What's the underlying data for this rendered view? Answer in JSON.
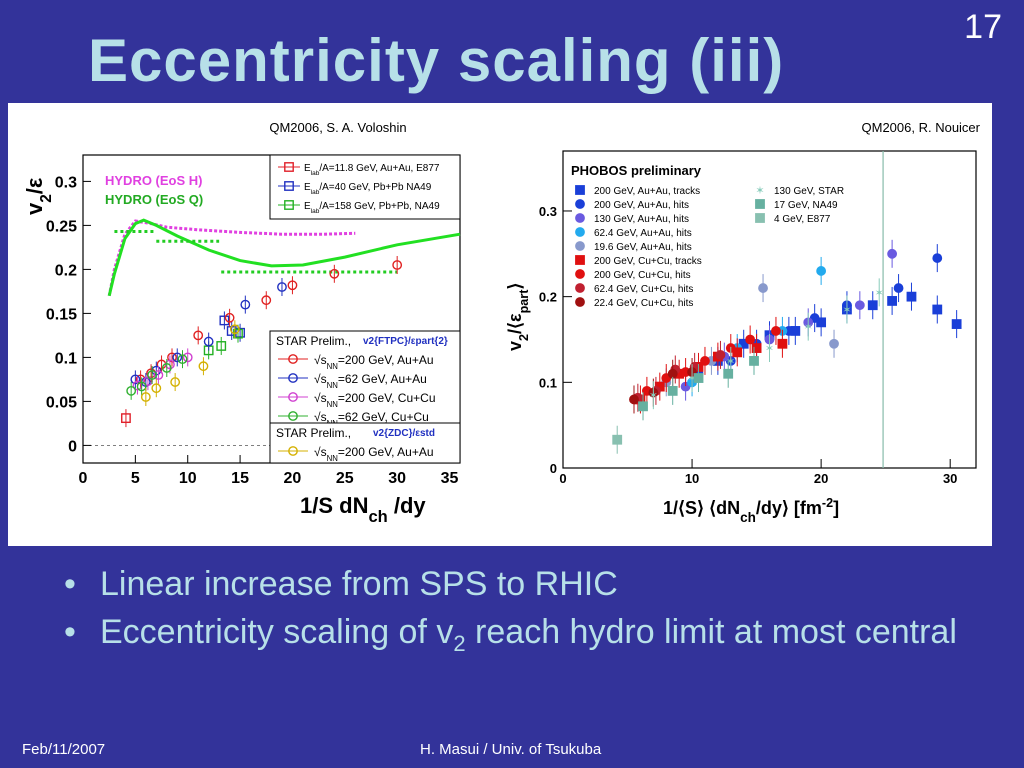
{
  "slide": {
    "number": "17",
    "title": "Eccentricity scaling (iii)",
    "bullets": [
      {
        "pre": "Linear increase from SPS to RHIC",
        "sub": "",
        "post": ""
      },
      {
        "pre": "Eccentricity scaling of v",
        "sub": "2",
        "post": " reach hydro limit at most central"
      }
    ],
    "footer": {
      "date": "Feb/11/2007",
      "author": "H. Masui / Univ. of Tsukuba"
    }
  },
  "colors": {
    "background": "#33339a",
    "title": "#b7e0e8",
    "hydro_h": "#e040e0",
    "hydro_q": "#22e022"
  },
  "chart_data": [
    {
      "type": "scatter",
      "source_label": "QM2006, S. A. Voloshin",
      "xlabel": "1/S dN",
      "xlabel_sub": "ch",
      "xlabel_post": " /dy",
      "ylabel": "v",
      "ylabel_sub": "2",
      "ylabel_post": "/ε",
      "xlim": [
        0,
        36
      ],
      "ylim": [
        -0.02,
        0.33
      ],
      "xticks": [
        "0",
        "5",
        "10",
        "15",
        "20",
        "25",
        "30",
        "35"
      ],
      "yticks": [
        "0",
        "0.05",
        "0.1",
        "0.15",
        "0.2",
        "0.25",
        "0.3"
      ],
      "hydro_labels": [
        "HYDRO (EoS H)",
        "HYDRO (EoS Q)"
      ],
      "legend_top": [
        "/A=11.8 GeV, Au+Au, E877",
        "/A=40 GeV, Pb+Pb NA49",
        "/A=158 GeV, Pb+Pb, NA49"
      ],
      "legend_top_prefix": "E",
      "legend_top_prefix_sub": "lab",
      "legend_bottom_title": "STAR Prelim.,",
      "legend_bottom_method": "v2{FTPC}/εpart{2}",
      "legend_bottom": [
        "=200 GeV, Au+Au",
        "=62 GeV, Au+Au",
        "=200 GeV, Cu+Cu",
        "=62 GeV, Cu+Cu"
      ],
      "legend_zdc_title": "STAR Prelim.,",
      "legend_zdc_method": "v2{ZDC}/εstd",
      "legend_zdc": [
        "=200 GeV, Au+Au"
      ],
      "sqrt_label": "s",
      "sqrt_sub": "NN",
      "series": [
        {
          "name": "/A=11.8 GeV, Au+Au, E877",
          "color": "#e0202a",
          "marker": "square",
          "x": [
            4.1
          ],
          "y": [
            0.031
          ]
        },
        {
          "name": "/A=40 GeV, Pb+Pb NA49",
          "color": "#2030c0",
          "marker": "square",
          "x": [
            13.5,
            14.2,
            15.0
          ],
          "y": [
            0.142,
            0.13,
            0.128
          ]
        },
        {
          "name": "/A=158 GeV, Pb+Pb, NA49",
          "color": "#22b022",
          "marker": "square",
          "x": [
            12.0,
            13.2,
            14.8
          ],
          "y": [
            0.108,
            0.113,
            0.127
          ]
        },
        {
          "name": "=200 GeV, Au+Au",
          "color": "#e02020",
          "marker": "circle",
          "x": [
            5.5,
            6.5,
            7.5,
            8.5,
            11.0,
            14.0,
            17.5,
            20.0,
            24.0,
            30.0
          ],
          "y": [
            0.075,
            0.082,
            0.092,
            0.1,
            0.125,
            0.145,
            0.165,
            0.182,
            0.195,
            0.205
          ]
        },
        {
          "name": "=62 GeV, Au+Au",
          "color": "#2030c0",
          "marker": "circle",
          "x": [
            5.0,
            6.0,
            7.0,
            9.0,
            12.0,
            15.5,
            19.0
          ],
          "y": [
            0.075,
            0.072,
            0.085,
            0.1,
            0.118,
            0.16,
            0.18
          ]
        },
        {
          "name": "=200 GeV, Cu+Cu",
          "color": "#d040d0",
          "marker": "circle",
          "x": [
            5.2,
            6.2,
            7.2,
            8.3,
            10.0
          ],
          "y": [
            0.068,
            0.073,
            0.08,
            0.092,
            0.1
          ]
        },
        {
          "name": "=62 GeV, Cu+Cu",
          "color": "#30b030",
          "marker": "circle",
          "x": [
            4.6,
            5.6,
            6.6,
            8.0,
            9.5
          ],
          "y": [
            0.062,
            0.067,
            0.08,
            0.088,
            0.098
          ]
        },
        {
          "name": "=200 GeV, Au+Au ZDC",
          "color": "#d4b000",
          "marker": "circle",
          "x": [
            6.0,
            7.0,
            8.8,
            11.5,
            14.5
          ],
          "y": [
            0.055,
            0.065,
            0.072,
            0.09,
            0.132
          ]
        }
      ]
    },
    {
      "type": "scatter",
      "source_label": "QM2006, R. Nouicer",
      "title": "PHOBOS preliminary",
      "xlabel": "1/⟨S⟩ ⟨dN",
      "xlabel_sub": "ch",
      "xlabel_post": "/dy⟩ [fm",
      "xlabel_sup": "-2",
      "xlabel_end": "]",
      "ylabel": "v",
      "ylabel_sub": "2",
      "ylabel_mid": "/⟨ε",
      "ylabel_sub2": "part",
      "ylabel_post": "⟩",
      "xlim": [
        0,
        32
      ],
      "ylim": [
        0,
        0.37
      ],
      "xticks": [
        "0",
        "10",
        "20",
        "30"
      ],
      "yticks": [
        "0",
        "0.1",
        "0.2",
        "0.3"
      ],
      "series": [
        {
          "name": "200 GeV, Au+Au, tracks",
          "color": "#1a3fd8",
          "marker": "square",
          "x": [
            12.0,
            14.0,
            16.0,
            18.0,
            20.0,
            22.0,
            24.0,
            25.5,
            27.0,
            29.0,
            30.5
          ],
          "y": [
            0.125,
            0.145,
            0.155,
            0.16,
            0.17,
            0.185,
            0.19,
            0.195,
            0.2,
            0.185,
            0.168
          ]
        },
        {
          "name": "200 GeV, Au+Au, hits",
          "color": "#1a3fd8",
          "marker": "circle",
          "x": [
            10.5,
            13.0,
            15.0,
            17.5,
            19.5,
            22.0,
            26.0,
            29.0
          ],
          "y": [
            0.11,
            0.125,
            0.145,
            0.16,
            0.175,
            0.19,
            0.21,
            0.245
          ]
        },
        {
          "name": "130 GeV, Au+Au, hits",
          "color": "#6a5ae0",
          "marker": "circle",
          "x": [
            9.5,
            12.5,
            16.0,
            19.0,
            23.0,
            25.5
          ],
          "y": [
            0.095,
            0.13,
            0.15,
            0.17,
            0.19,
            0.25
          ]
        },
        {
          "name": "62.4 GeV, Au+Au, hits",
          "color": "#22aaee",
          "marker": "circle",
          "x": [
            10.0,
            13.5,
            17.0,
            20.0
          ],
          "y": [
            0.1,
            0.14,
            0.16,
            0.23
          ]
        },
        {
          "name": "19.6 GeV, Au+Au, hits",
          "color": "#8899cc",
          "marker": "circle",
          "x": [
            8.0,
            11.5,
            15.5,
            21.0
          ],
          "y": [
            0.1,
            0.125,
            0.21,
            0.145
          ]
        },
        {
          "name": "200 GeV, Cu+Cu, tracks",
          "color": "#e01010",
          "marker": "square",
          "x": [
            6.0,
            7.5,
            9.0,
            10.5,
            12.0,
            13.5,
            15.0,
            17.0
          ],
          "y": [
            0.08,
            0.095,
            0.11,
            0.118,
            0.13,
            0.135,
            0.14,
            0.145
          ]
        },
        {
          "name": "200 GeV, Cu+Cu, hits",
          "color": "#e01010",
          "marker": "circle",
          "x": [
            6.5,
            8.0,
            9.5,
            11.0,
            13.0,
            14.5,
            16.5
          ],
          "y": [
            0.09,
            0.105,
            0.112,
            0.125,
            0.14,
            0.15,
            0.16
          ]
        },
        {
          "name": "62.4 GeV, Cu+Cu, hits",
          "color": "#c02030",
          "marker": "circle",
          "x": [
            5.8,
            7.2,
            8.7,
            10.2,
            12.2
          ],
          "y": [
            0.082,
            0.09,
            0.115,
            0.118,
            0.132
          ]
        },
        {
          "name": "22.4 GeV, Cu+Cu, hits",
          "color": "#a01010",
          "marker": "circle",
          "x": [
            5.5,
            7.0,
            8.5,
            10.0
          ],
          "y": [
            0.08,
            0.088,
            0.11,
            0.112
          ]
        },
        {
          "name": "130 GeV, STAR",
          "color": "#88ccbb",
          "marker": "star",
          "x": [
            7.0,
            10.0,
            13.0,
            16.0,
            19.0,
            22.0,
            24.5
          ],
          "y": [
            0.085,
            0.105,
            0.125,
            0.14,
            0.165,
            0.185,
            0.205
          ]
        },
        {
          "name": "17 GeV, NA49",
          "color": "#66b0a0",
          "marker": "square",
          "x": [
            6.2,
            8.5,
            10.5,
            12.8,
            14.8
          ],
          "y": [
            0.072,
            0.09,
            0.105,
            0.11,
            0.125
          ]
        },
        {
          "name": "4 GeV, E877",
          "color": "#88c0b0",
          "marker": "square",
          "x": [
            4.2
          ],
          "y": [
            0.033
          ]
        }
      ]
    }
  ]
}
